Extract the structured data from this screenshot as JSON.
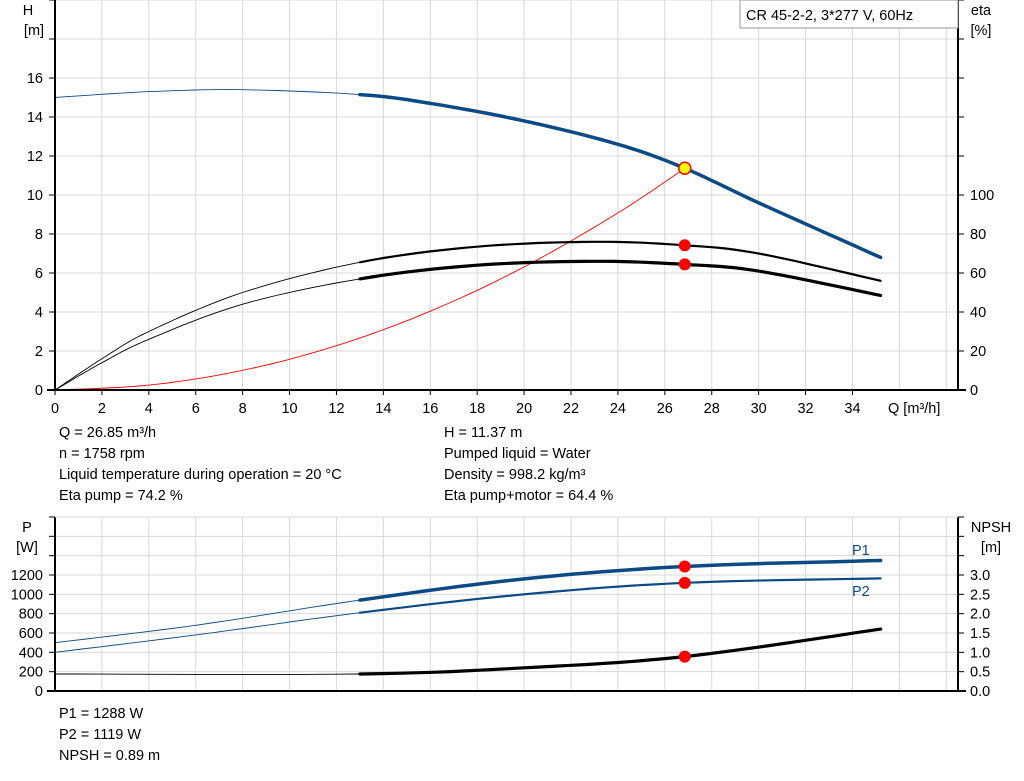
{
  "colors": {
    "head": "#0b4a85",
    "eta": "#000000",
    "system": "#ff0000",
    "power": "#0b4a85",
    "npsh": "#000000",
    "marker": "#ff0000",
    "marker_duty": "#ffff00",
    "grid": "#d8d8d8"
  },
  "chart_data": [
    {
      "type": "line",
      "title": "CR 45-2-2, 3*277 V, 60Hz",
      "xlabel": "Q [m³/h]",
      "ylabel": [
        "H",
        "[m]"
      ],
      "y2label": [
        "eta",
        "[%]"
      ],
      "xlim": [
        0,
        38.5
      ],
      "ylim": [
        0,
        20
      ],
      "y2lim": [
        0,
        200
      ],
      "grid": true,
      "xticks": [
        "0",
        "2",
        "4",
        "6",
        "8",
        "10",
        "12",
        "14",
        "16",
        "18",
        "20",
        "22",
        "24",
        "26",
        "28",
        "30",
        "32",
        "34"
      ],
      "yticks": [
        "0",
        "2",
        "4",
        "6",
        "8",
        "10",
        "12",
        "14",
        "16"
      ],
      "y2ticks": [
        "0",
        "20",
        "40",
        "60",
        "80",
        "100"
      ],
      "series": [
        {
          "key": "H",
          "axis": "left",
          "points": [
            [
              0,
              15.0
            ],
            [
              4,
              15.3
            ],
            [
              8,
              15.4
            ],
            [
              13,
              15.15
            ],
            [
              16,
              14.7
            ],
            [
              20,
              13.8
            ],
            [
              24,
              12.6
            ],
            [
              26.85,
              11.37
            ],
            [
              30,
              9.6
            ],
            [
              35.2,
              6.8
            ]
          ],
          "thin_until": 13
        },
        {
          "key": "eta_pump",
          "axis": "right",
          "points": [
            [
              0,
              0
            ],
            [
              2,
              16
            ],
            [
              4,
              30
            ],
            [
              8,
              50
            ],
            [
              13,
              65.5
            ],
            [
              18,
              73.5
            ],
            [
              23,
              76
            ],
            [
              26.85,
              74.2
            ],
            [
              30,
              70
            ],
            [
              35.2,
              56
            ]
          ],
          "thin_until": 13
        },
        {
          "key": "eta_pump_motor",
          "axis": "right",
          "points": [
            [
              0,
              0
            ],
            [
              2,
              14
            ],
            [
              4,
              26
            ],
            [
              8,
              44
            ],
            [
              13,
              57
            ],
            [
              18,
              64
            ],
            [
              23,
              66
            ],
            [
              26.85,
              64.4
            ],
            [
              30,
              61
            ],
            [
              35.2,
              48.5
            ]
          ],
          "thin_until": 13
        },
        {
          "key": "system",
          "axis": "left",
          "points": [
            [
              0,
              0
            ],
            [
              4,
              0.25
            ],
            [
              8,
              1.01
            ],
            [
              12,
              2.27
            ],
            [
              16,
              4.04
            ],
            [
              20,
              6.31
            ],
            [
              24,
              9.08
            ],
            [
              26.85,
              11.37
            ]
          ],
          "thin_until": 27
        }
      ],
      "duty_point": {
        "Q": 26.85,
        "H": 11.37,
        "eta_pump": 74.2,
        "eta_pump_motor": 64.4
      }
    },
    {
      "type": "line",
      "ylabel": [
        "P",
        "[W]"
      ],
      "y2label": [
        "NPSH",
        "[m]"
      ],
      "xlim": [
        0,
        38.5
      ],
      "ylim": [
        0,
        1800
      ],
      "y2lim": [
        0,
        4.5
      ],
      "grid": true,
      "yticks": [
        "0",
        "200",
        "400",
        "600",
        "800",
        "1000",
        "1200"
      ],
      "y2ticks": [
        "0.0",
        "0.5",
        "1.0",
        "1.5",
        "2.0",
        "2.5",
        "3.0"
      ],
      "series": [
        {
          "key": "P1",
          "name": "P1",
          "axis": "left",
          "points": [
            [
              0,
              500
            ],
            [
              6,
              680
            ],
            [
              13,
              940
            ],
            [
              20,
              1160
            ],
            [
              26.85,
              1288
            ],
            [
              35.2,
              1350
            ]
          ],
          "thin_until": 13
        },
        {
          "key": "P2",
          "name": "P2",
          "axis": "left",
          "points": [
            [
              0,
              400
            ],
            [
              6,
              580
            ],
            [
              13,
              810
            ],
            [
              20,
              1000
            ],
            [
              26.85,
              1119
            ],
            [
              35.2,
              1165
            ]
          ],
          "thin_until": 13
        },
        {
          "key": "NPSH",
          "axis": "right",
          "points": [
            [
              0,
              0.44
            ],
            [
              13,
              0.44
            ],
            [
              20,
              0.6
            ],
            [
              26.85,
              0.89
            ],
            [
              35.2,
              1.6
            ]
          ],
          "thin_until": 13
        }
      ],
      "duty_point": {
        "Q": 26.85,
        "P1": 1288,
        "P2": 1119,
        "NPSH": 0.89
      }
    }
  ],
  "info": {
    "q": "Q = 26.85 m³/h",
    "n": "n = 1758 rpm",
    "temp": "Liquid temperature during operation = 20 °C",
    "eta_pump": "Eta pump = 74.2 %",
    "h": "H = 11.37 m",
    "liquid": "Pumped liquid = Water",
    "density": "Density = 998.2 kg/m³",
    "eta_pm": "Eta pump+motor = 64.4 %",
    "p1": "P1 = 1288 W",
    "p2": "P2 = 1119 W",
    "npsh": "NPSH = 0.89 m"
  }
}
